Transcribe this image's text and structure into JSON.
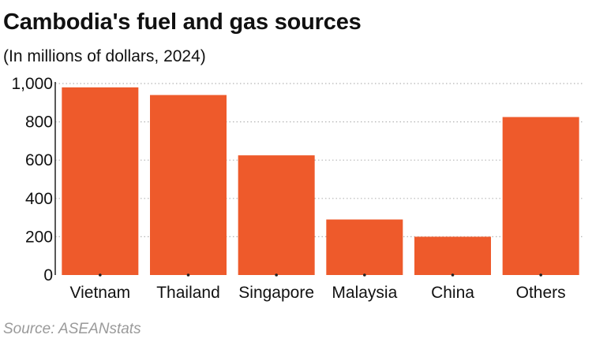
{
  "title": "Cambodia's fuel and gas sources",
  "subtitle": "(In millions of dollars, 2024)",
  "source": "Source: ASEANstats",
  "colors": {
    "bar": "#ee5a2b",
    "grid": "#b5b5b5",
    "axis": "#222222"
  },
  "chart_data": {
    "type": "bar",
    "title": "Cambodia's fuel and gas sources",
    "subtitle": "(In millions of dollars, 2024)",
    "xlabel": "",
    "ylabel": "",
    "categories": [
      "Vietnam",
      "Thailand",
      "Singapore",
      "Malaysia",
      "China",
      "Others"
    ],
    "values": [
      980,
      940,
      625,
      290,
      200,
      825
    ],
    "ylim": [
      0,
      1000
    ],
    "yticks": [
      0,
      200,
      400,
      600,
      800,
      1000
    ],
    "ytick_labels": [
      "0",
      "200",
      "400",
      "600",
      "800",
      "1,000"
    ],
    "grid": true,
    "legend": "none"
  }
}
